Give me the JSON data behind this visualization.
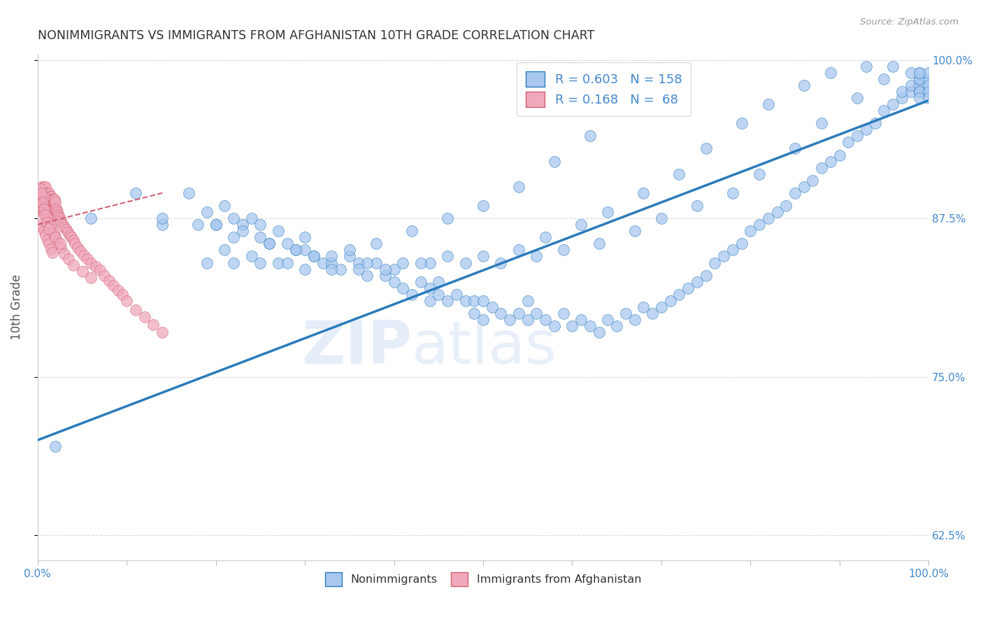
{
  "title": "NONIMMIGRANTS VS IMMIGRANTS FROM AFGHANISTAN 10TH GRADE CORRELATION CHART",
  "source": "Source: ZipAtlas.com",
  "ylabel": "10th Grade",
  "y_ticks": [
    "62.5%",
    "75.0%",
    "87.5%",
    "100.0%"
  ],
  "y_tick_vals": [
    0.625,
    0.75,
    0.875,
    1.0
  ],
  "legend_entries": [
    {
      "label": "Nonimmigrants",
      "R": "0.603",
      "N": "158",
      "color": "#a8c8f0"
    },
    {
      "label": "Immigrants from Afghanistan",
      "R": "0.168",
      "N": "68",
      "color": "#f0a8c0"
    }
  ],
  "blue_scatter_x": [
    0.02,
    0.06,
    0.11,
    0.14,
    0.17,
    0.19,
    0.2,
    0.21,
    0.22,
    0.22,
    0.23,
    0.24,
    0.25,
    0.25,
    0.26,
    0.27,
    0.28,
    0.29,
    0.3,
    0.3,
    0.31,
    0.32,
    0.33,
    0.34,
    0.35,
    0.36,
    0.37,
    0.38,
    0.39,
    0.4,
    0.4,
    0.41,
    0.42,
    0.43,
    0.44,
    0.44,
    0.45,
    0.45,
    0.46,
    0.47,
    0.48,
    0.49,
    0.49,
    0.5,
    0.5,
    0.51,
    0.52,
    0.53,
    0.54,
    0.55,
    0.55,
    0.56,
    0.57,
    0.58,
    0.59,
    0.6,
    0.61,
    0.62,
    0.63,
    0.64,
    0.65,
    0.66,
    0.67,
    0.68,
    0.69,
    0.7,
    0.71,
    0.72,
    0.73,
    0.74,
    0.75,
    0.76,
    0.77,
    0.78,
    0.79,
    0.8,
    0.81,
    0.82,
    0.83,
    0.84,
    0.85,
    0.86,
    0.87,
    0.88,
    0.89,
    0.9,
    0.91,
    0.92,
    0.93,
    0.94,
    0.95,
    0.96,
    0.97,
    0.97,
    0.98,
    0.98,
    0.99,
    0.99,
    0.99,
    0.99,
    0.99,
    0.99,
    0.99,
    1.0,
    1.0,
    1.0,
    1.0,
    1.0,
    0.14,
    0.18,
    0.2,
    0.23,
    0.26,
    0.29,
    0.33,
    0.37,
    0.41,
    0.44,
    0.48,
    0.52,
    0.56,
    0.59,
    0.63,
    0.67,
    0.7,
    0.74,
    0.78,
    0.81,
    0.85,
    0.88,
    0.92,
    0.95,
    0.98,
    0.21,
    0.24,
    0.27,
    0.3,
    0.33,
    0.36,
    0.39,
    0.43,
    0.46,
    0.5,
    0.54,
    0.57,
    0.61,
    0.64,
    0.68,
    0.72,
    0.75,
    0.79,
    0.82,
    0.86,
    0.89,
    0.93,
    0.96,
    0.99,
    0.19,
    0.22,
    0.25,
    0.28,
    0.31,
    0.35,
    0.38,
    0.42,
    0.46,
    0.5,
    0.54,
    0.58,
    0.62
  ],
  "blue_scatter_y": [
    0.695,
    0.875,
    0.895,
    0.87,
    0.895,
    0.88,
    0.87,
    0.885,
    0.86,
    0.875,
    0.87,
    0.875,
    0.86,
    0.87,
    0.855,
    0.865,
    0.855,
    0.85,
    0.86,
    0.85,
    0.845,
    0.84,
    0.84,
    0.835,
    0.845,
    0.84,
    0.83,
    0.84,
    0.83,
    0.835,
    0.825,
    0.82,
    0.815,
    0.825,
    0.82,
    0.81,
    0.815,
    0.825,
    0.81,
    0.815,
    0.81,
    0.8,
    0.81,
    0.795,
    0.81,
    0.805,
    0.8,
    0.795,
    0.8,
    0.795,
    0.81,
    0.8,
    0.795,
    0.79,
    0.8,
    0.79,
    0.795,
    0.79,
    0.785,
    0.795,
    0.79,
    0.8,
    0.795,
    0.805,
    0.8,
    0.805,
    0.81,
    0.815,
    0.82,
    0.825,
    0.83,
    0.84,
    0.845,
    0.85,
    0.855,
    0.865,
    0.87,
    0.875,
    0.88,
    0.885,
    0.895,
    0.9,
    0.905,
    0.915,
    0.92,
    0.925,
    0.935,
    0.94,
    0.945,
    0.95,
    0.96,
    0.965,
    0.97,
    0.975,
    0.975,
    0.98,
    0.98,
    0.985,
    0.975,
    0.985,
    0.99,
    0.975,
    0.97,
    0.985,
    0.99,
    0.98,
    0.975,
    0.97,
    0.875,
    0.87,
    0.87,
    0.865,
    0.855,
    0.85,
    0.845,
    0.84,
    0.84,
    0.84,
    0.84,
    0.84,
    0.845,
    0.85,
    0.855,
    0.865,
    0.875,
    0.885,
    0.895,
    0.91,
    0.93,
    0.95,
    0.97,
    0.985,
    0.99,
    0.85,
    0.845,
    0.84,
    0.835,
    0.835,
    0.835,
    0.835,
    0.84,
    0.845,
    0.845,
    0.85,
    0.86,
    0.87,
    0.88,
    0.895,
    0.91,
    0.93,
    0.95,
    0.965,
    0.98,
    0.99,
    0.995,
    0.995,
    0.99,
    0.84,
    0.84,
    0.84,
    0.84,
    0.845,
    0.85,
    0.855,
    0.865,
    0.875,
    0.885,
    0.9,
    0.92,
    0.94
  ],
  "pink_scatter_x": [
    0.002,
    0.003,
    0.004,
    0.005,
    0.005,
    0.006,
    0.006,
    0.007,
    0.007,
    0.008,
    0.008,
    0.009,
    0.009,
    0.01,
    0.01,
    0.011,
    0.011,
    0.012,
    0.012,
    0.013,
    0.013,
    0.014,
    0.014,
    0.015,
    0.015,
    0.016,
    0.016,
    0.017,
    0.017,
    0.018,
    0.018,
    0.019,
    0.019,
    0.02,
    0.02,
    0.021,
    0.022,
    0.023,
    0.024,
    0.025,
    0.026,
    0.028,
    0.03,
    0.032,
    0.034,
    0.036,
    0.038,
    0.04,
    0.042,
    0.045,
    0.048,
    0.052,
    0.056,
    0.06,
    0.065,
    0.07,
    0.075,
    0.08,
    0.085,
    0.09,
    0.095,
    0.1,
    0.11,
    0.12,
    0.13,
    0.14,
    0.003,
    0.005,
    0.007,
    0.01,
    0.013,
    0.016,
    0.019,
    0.022,
    0.026,
    0.03,
    0.035,
    0.04,
    0.05,
    0.06,
    0.003,
    0.005,
    0.007,
    0.009,
    0.011,
    0.013,
    0.015,
    0.017,
    0.003,
    0.004,
    0.004,
    0.005,
    0.006,
    0.006,
    0.007,
    0.007,
    0.008,
    0.01,
    0.014,
    0.018,
    0.003,
    0.004,
    0.006,
    0.007,
    0.008,
    0.01,
    0.013,
    0.02,
    0.025
  ],
  "pink_scatter_y": [
    0.89,
    0.895,
    0.9,
    0.895,
    0.88,
    0.885,
    0.895,
    0.89,
    0.9,
    0.895,
    0.885,
    0.895,
    0.9,
    0.89,
    0.895,
    0.885,
    0.89,
    0.895,
    0.885,
    0.89,
    0.895,
    0.885,
    0.892,
    0.885,
    0.892,
    0.882,
    0.89,
    0.882,
    0.89,
    0.882,
    0.89,
    0.882,
    0.89,
    0.882,
    0.888,
    0.882,
    0.88,
    0.878,
    0.876,
    0.875,
    0.873,
    0.87,
    0.868,
    0.866,
    0.864,
    0.862,
    0.86,
    0.858,
    0.855,
    0.852,
    0.849,
    0.846,
    0.843,
    0.84,
    0.837,
    0.834,
    0.83,
    0.826,
    0.822,
    0.818,
    0.815,
    0.81,
    0.803,
    0.797,
    0.791,
    0.785,
    0.888,
    0.885,
    0.882,
    0.877,
    0.872,
    0.867,
    0.862,
    0.857,
    0.852,
    0.847,
    0.843,
    0.838,
    0.833,
    0.828,
    0.87,
    0.868,
    0.865,
    0.862,
    0.858,
    0.855,
    0.851,
    0.848,
    0.892,
    0.892,
    0.882,
    0.892,
    0.882,
    0.892,
    0.882,
    0.892,
    0.882,
    0.876,
    0.869,
    0.863,
    0.898,
    0.895,
    0.888,
    0.882,
    0.878,
    0.872,
    0.867,
    0.86,
    0.855
  ],
  "blue_line_x": [
    0.0,
    1.0
  ],
  "blue_line_y_start": 0.7,
  "blue_line_y_end": 0.968,
  "pink_line_x": [
    0.0,
    0.14
  ],
  "pink_line_y_start": 0.87,
  "pink_line_y_end": 0.895,
  "watermark_zip": "ZIP",
  "watermark_atlas": "atlas",
  "scatter_color_blue": "#a8c8f0",
  "scatter_color_pink": "#f0a8bc",
  "line_color_blue": "#2b7bba",
  "line_color_pink": "#d06070",
  "bg_color": "#ffffff",
  "grid_color": "#d8d8d8",
  "title_color": "#333333",
  "axis_label_color": "#4488cc",
  "xlim": [
    0.0,
    1.0
  ],
  "ylim": [
    0.605,
    1.005
  ]
}
